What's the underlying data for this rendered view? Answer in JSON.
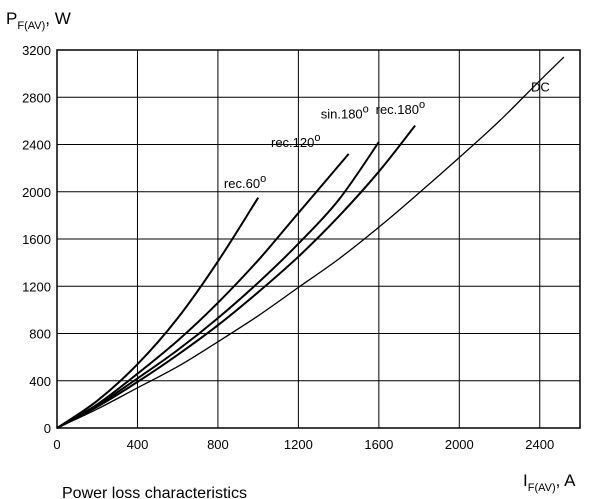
{
  "chart_data": {
    "type": "line",
    "title": "",
    "caption": "Power loss characteristics",
    "xlabel": {
      "main": "I",
      "sub": "F(AV)",
      "unit": ", A"
    },
    "ylabel": {
      "main": "P",
      "sub": "F(AV)",
      "unit": ", W"
    },
    "xlim": [
      0,
      2600
    ],
    "ylim": [
      0,
      3200
    ],
    "x_ticks": [
      0,
      400,
      800,
      1200,
      1600,
      2000,
      2400
    ],
    "x_tick_labels": [
      "0",
      "400",
      "800",
      "1200",
      "1600",
      "2000",
      "2400"
    ],
    "y_ticks": [
      0,
      400,
      800,
      1200,
      1600,
      2000,
      2400,
      2800,
      3200
    ],
    "y_tick_labels": [
      "0",
      "400",
      "800",
      "1200",
      "1600",
      "2000",
      "2400",
      "2800",
      "3200"
    ],
    "grid": true,
    "series": [
      {
        "name": "rec.60",
        "name_sup": "o",
        "label_at": [
          1040,
          2030
        ],
        "x": [
          0,
          200,
          400,
          600,
          800,
          1000
        ],
        "y": [
          0,
          230,
          540,
          930,
          1410,
          1950
        ]
      },
      {
        "name": "rec.120",
        "name_sup": "o",
        "label_at": [
          1310,
          2380
        ],
        "x": [
          0,
          200,
          400,
          600,
          800,
          1000,
          1200,
          1450
        ],
        "y": [
          0,
          200,
          460,
          740,
          1060,
          1420,
          1820,
          2320
        ]
      },
      {
        "name": "sin.180",
        "name_sup": "o",
        "label_at": [
          1550,
          2620
        ],
        "x": [
          0,
          200,
          400,
          600,
          800,
          1000,
          1200,
          1400,
          1600
        ],
        "y": [
          0,
          190,
          420,
          660,
          930,
          1230,
          1560,
          1930,
          2420
        ]
      },
      {
        "name": "rec.180",
        "name_sup": "o",
        "label_at": [
          1830,
          2660
        ],
        "x": [
          0,
          200,
          400,
          600,
          800,
          1000,
          1200,
          1400,
          1600,
          1780
        ],
        "y": [
          0,
          180,
          390,
          620,
          870,
          1150,
          1450,
          1790,
          2170,
          2560
        ]
      },
      {
        "name": "DC",
        "name_sup": "",
        "label_at": [
          2450,
          2850
        ],
        "x": [
          0,
          200,
          400,
          600,
          800,
          1000,
          1200,
          1400,
          1600,
          1800,
          2000,
          2200,
          2400,
          2520
        ],
        "y": [
          0,
          160,
          340,
          520,
          730,
          950,
          1190,
          1430,
          1700,
          1990,
          2290,
          2600,
          2940,
          3140
        ]
      }
    ]
  }
}
